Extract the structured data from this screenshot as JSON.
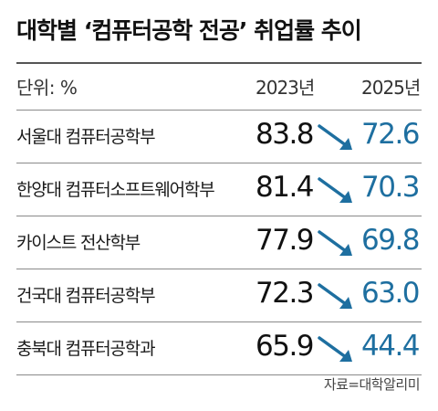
{
  "title": "대학별 ‘컴퓨터공학 전공’ 취업률 추이",
  "header": {
    "unit": "단위: %",
    "year1": "2023년",
    "year2": "2025년"
  },
  "source": "자료=대학알리미",
  "colors": {
    "accent": "#1e6fa0",
    "text": "#111111",
    "rule": "#8a8a8a"
  },
  "icons": [
    "arrow-down-right-icon"
  ],
  "chart_data": {
    "type": "table",
    "title": "대학별 ‘컴퓨터공학 전공’ 취업률 추이",
    "unit": "%",
    "columns": [
      "2023년",
      "2025년"
    ],
    "categories": [
      "서울대 컴퓨터공학부",
      "한양대 컴퓨터소프트웨어학부",
      "카이스트 전산학부",
      "건국대 컴퓨터공학부",
      "충북대 컴퓨터공학과"
    ],
    "series": [
      {
        "name": "2023년",
        "values": [
          "83.8",
          "81.4",
          "77.9",
          "72.3",
          "65.9"
        ]
      },
      {
        "name": "2025년",
        "values": [
          "72.6",
          "70.3",
          "69.8",
          "63.0",
          "44.4"
        ]
      }
    ]
  }
}
